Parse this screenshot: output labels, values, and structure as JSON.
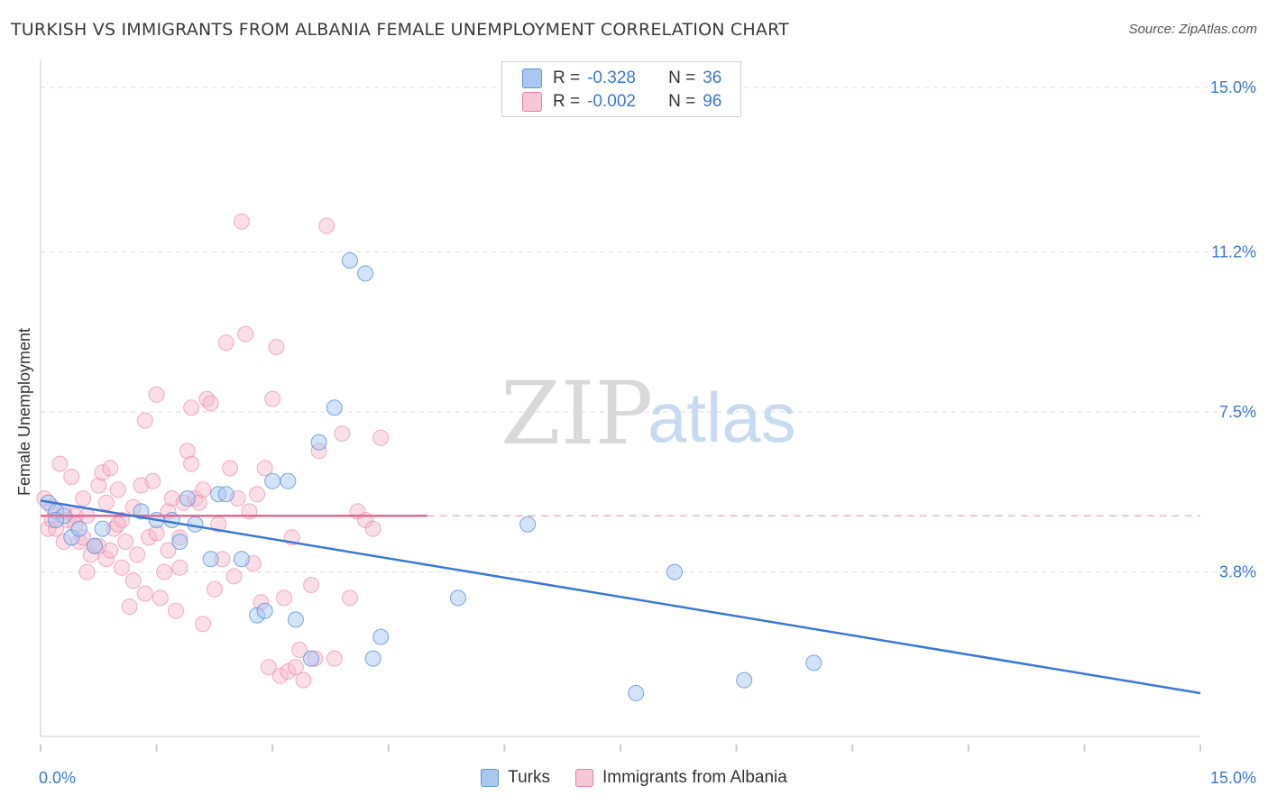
{
  "title": "TURKISH VS IMMIGRANTS FROM ALBANIA FEMALE UNEMPLOYMENT CORRELATION CHART",
  "source": "Source: ZipAtlas.com",
  "watermark": {
    "zip": "ZIP",
    "atlas": "atlas"
  },
  "stats": {
    "rows": [
      {
        "r_label": "R =",
        "r_value": "-0.328",
        "n_label": "N =",
        "n_value": "36"
      },
      {
        "r_label": "R =",
        "r_value": "-0.002",
        "n_label": "N =",
        "n_value": "96"
      }
    ]
  },
  "legend": {
    "turks": "Turks",
    "albania": "Immigrants from Albania"
  },
  "colors": {
    "turks_fill": "#a9c8f0",
    "turks_stroke": "#5b93dd",
    "turks_line": "#3a78d4",
    "albania_fill": "#f6b8cc",
    "albania_stroke": "#e77fa0",
    "albania_line": "#e46a8e",
    "axis_label": "#3a78d4",
    "grid": "#dddddd"
  },
  "chart_data": {
    "type": "scatter",
    "title": "TURKISH VS IMMIGRANTS FROM ALBANIA FEMALE UNEMPLOYMENT CORRELATION CHART",
    "xlabel": "",
    "ylabel": "Female Unemployment",
    "xlim": [
      0,
      15
    ],
    "ylim": [
      0,
      15.5
    ],
    "x_tick_labels": [
      "0.0%",
      "15.0%"
    ],
    "y_ticks": [
      3.8,
      7.5,
      11.2,
      15.0
    ],
    "y_tick_labels": [
      "3.8%",
      "7.5%",
      "11.2%",
      "15.0%"
    ],
    "grid": true,
    "legend_position": "bottom-center",
    "series": [
      {
        "name": "Turks",
        "r": -0.328,
        "n": 36,
        "trend": {
          "x0": 0,
          "y0": 5.45,
          "x1": 15,
          "y1": 1.0,
          "style": "solid"
        },
        "points": [
          [
            0.1,
            5.4
          ],
          [
            0.2,
            5.2
          ],
          [
            0.3,
            5.1
          ],
          [
            0.4,
            4.6
          ],
          [
            0.5,
            4.8
          ],
          [
            0.7,
            4.4
          ],
          [
            0.8,
            4.8
          ],
          [
            1.3,
            5.2
          ],
          [
            1.5,
            5.0
          ],
          [
            1.7,
            5.0
          ],
          [
            1.8,
            4.5
          ],
          [
            1.9,
            5.5
          ],
          [
            2.0,
            4.9
          ],
          [
            2.2,
            4.1
          ],
          [
            2.3,
            5.6
          ],
          [
            2.4,
            5.6
          ],
          [
            2.6,
            4.1
          ],
          [
            2.8,
            2.8
          ],
          [
            2.9,
            2.9
          ],
          [
            3.0,
            5.9
          ],
          [
            3.2,
            5.9
          ],
          [
            3.3,
            2.7
          ],
          [
            3.5,
            1.8
          ],
          [
            3.6,
            6.8
          ],
          [
            3.8,
            7.6
          ],
          [
            4.0,
            11.0
          ],
          [
            4.2,
            10.7
          ],
          [
            4.3,
            1.8
          ],
          [
            4.4,
            2.3
          ],
          [
            5.4,
            3.2
          ],
          [
            6.3,
            4.9
          ],
          [
            7.7,
            1.0
          ],
          [
            8.2,
            3.8
          ],
          [
            9.1,
            1.3
          ],
          [
            10.0,
            1.7
          ],
          [
            0.2,
            5.0
          ]
        ]
      },
      {
        "name": "Immigrants from Albania",
        "r": -0.002,
        "n": 96,
        "trend": {
          "x0": 0,
          "y0": 5.1,
          "x1": 5.0,
          "y1": 5.1,
          "x_dash_end": 15,
          "style": "solid-then-dashed"
        },
        "points": [
          [
            0.05,
            5.5
          ],
          [
            0.1,
            4.8
          ],
          [
            0.15,
            5.0
          ],
          [
            0.2,
            4.8
          ],
          [
            0.25,
            6.3
          ],
          [
            0.3,
            5.2
          ],
          [
            0.35,
            5.0
          ],
          [
            0.4,
            6.0
          ],
          [
            0.45,
            5.1
          ],
          [
            0.5,
            4.5
          ],
          [
            0.55,
            4.6
          ],
          [
            0.6,
            3.8
          ],
          [
            0.65,
            4.2
          ],
          [
            0.7,
            4.4
          ],
          [
            0.75,
            5.8
          ],
          [
            0.8,
            6.1
          ],
          [
            0.85,
            4.1
          ],
          [
            0.9,
            6.2
          ],
          [
            0.95,
            4.8
          ],
          [
            1.0,
            5.7
          ],
          [
            1.05,
            5.0
          ],
          [
            1.1,
            4.5
          ],
          [
            1.15,
            3.0
          ],
          [
            1.2,
            5.3
          ],
          [
            1.25,
            4.2
          ],
          [
            1.3,
            5.8
          ],
          [
            1.35,
            7.3
          ],
          [
            1.4,
            4.6
          ],
          [
            1.45,
            5.9
          ],
          [
            1.5,
            7.9
          ],
          [
            1.55,
            3.2
          ],
          [
            1.6,
            3.8
          ],
          [
            1.65,
            5.2
          ],
          [
            1.7,
            5.5
          ],
          [
            1.75,
            2.9
          ],
          [
            1.8,
            4.6
          ],
          [
            1.85,
            5.4
          ],
          [
            1.9,
            6.6
          ],
          [
            1.95,
            6.3
          ],
          [
            2.0,
            5.5
          ],
          [
            2.05,
            5.4
          ],
          [
            2.1,
            5.7
          ],
          [
            2.15,
            7.8
          ],
          [
            2.2,
            7.7
          ],
          [
            2.25,
            3.4
          ],
          [
            2.3,
            4.9
          ],
          [
            2.35,
            4.1
          ],
          [
            2.4,
            9.1
          ],
          [
            2.45,
            6.2
          ],
          [
            2.5,
            3.7
          ],
          [
            2.55,
            5.5
          ],
          [
            2.6,
            11.9
          ],
          [
            2.65,
            9.3
          ],
          [
            2.7,
            5.2
          ],
          [
            2.75,
            4.0
          ],
          [
            2.8,
            5.6
          ],
          [
            2.85,
            3.1
          ],
          [
            2.9,
            6.2
          ],
          [
            2.95,
            1.6
          ],
          [
            3.0,
            7.8
          ],
          [
            3.05,
            9.0
          ],
          [
            3.1,
            1.4
          ],
          [
            3.15,
            3.2
          ],
          [
            3.2,
            1.5
          ],
          [
            3.25,
            4.6
          ],
          [
            3.3,
            1.6
          ],
          [
            3.35,
            2.0
          ],
          [
            3.4,
            1.3
          ],
          [
            3.5,
            3.5
          ],
          [
            3.55,
            1.8
          ],
          [
            3.6,
            6.6
          ],
          [
            3.7,
            11.8
          ],
          [
            3.8,
            1.8
          ],
          [
            3.9,
            7.0
          ],
          [
            4.0,
            3.2
          ],
          [
            4.1,
            5.2
          ],
          [
            4.2,
            5.0
          ],
          [
            4.3,
            4.8
          ],
          [
            4.4,
            6.9
          ],
          [
            1.0,
            4.9
          ],
          [
            0.3,
            4.5
          ],
          [
            0.6,
            5.1
          ],
          [
            0.9,
            4.3
          ],
          [
            1.2,
            3.6
          ],
          [
            1.5,
            4.7
          ],
          [
            1.8,
            3.9
          ],
          [
            2.1,
            2.6
          ],
          [
            0.45,
            4.9
          ],
          [
            0.75,
            4.4
          ],
          [
            1.05,
            3.9
          ],
          [
            1.35,
            3.3
          ],
          [
            1.65,
            4.3
          ],
          [
            1.95,
            7.6
          ],
          [
            0.15,
            5.3
          ],
          [
            0.55,
            5.5
          ],
          [
            0.85,
            5.4
          ]
        ]
      }
    ]
  }
}
